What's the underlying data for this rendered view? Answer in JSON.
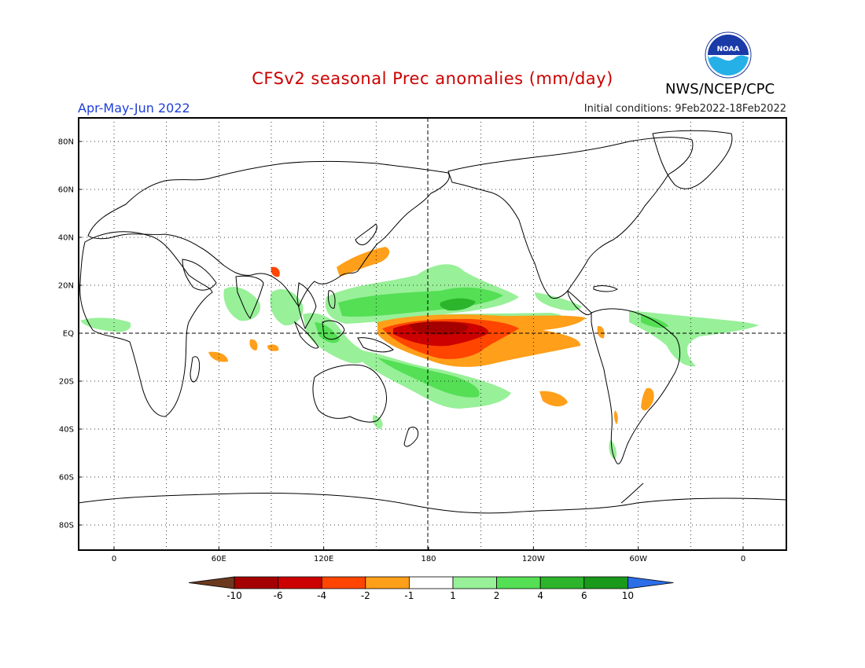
{
  "header": {
    "title": "CFSv2 seasonal Prec anomalies (mm/day)",
    "organization": "NWS/NCEP/CPC",
    "season": "Apr-May-Jun 2022",
    "initial_conditions": "Initial conditions: 9Feb2022-18Feb2022",
    "logo_text": "NOAA"
  },
  "colors": {
    "title": "#cc0000",
    "season": "#1f3fd8",
    "frame": "#000000",
    "coastline": "#000000"
  },
  "map": {
    "latitude_labels": [
      "80N",
      "60N",
      "40N",
      "20N",
      "EQ",
      "20S",
      "40S",
      "60S",
      "80S"
    ],
    "longitude_labels": [
      "0",
      "60E",
      "120E",
      "180",
      "120W",
      "60W",
      "0"
    ]
  },
  "colorbar": {
    "tick_labels": [
      "-10",
      "-6",
      "-4",
      "-2",
      "-1",
      "1",
      "2",
      "4",
      "6",
      "10"
    ],
    "colors": [
      "#6b3a1e",
      "#a50000",
      "#cc0000",
      "#ff4500",
      "#ff9f1a",
      "#ffffff",
      "#98f098",
      "#54df54",
      "#2cb52c",
      "#1a9a1a",
      "#2c6ee8"
    ]
  }
}
